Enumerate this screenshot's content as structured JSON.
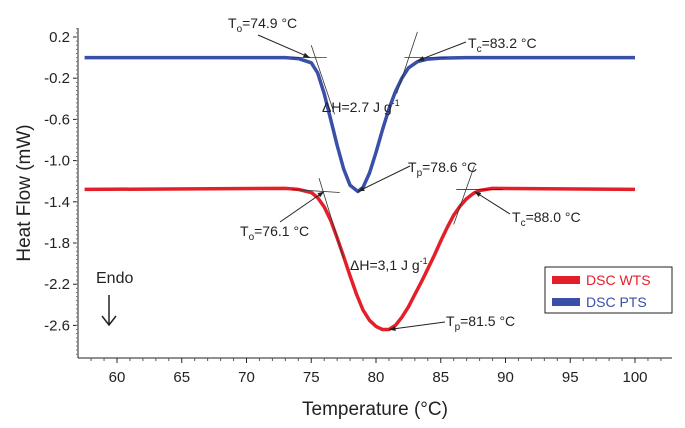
{
  "chart_data": {
    "type": "line",
    "title": "",
    "xlabel": "Temperature (°C)",
    "ylabel": "Heat Flow (mW)",
    "xlim": [
      57.2,
      103
    ],
    "ylim": [
      -2.92,
      0.29
    ],
    "xticks": [
      60,
      65,
      70,
      75,
      80,
      85,
      90,
      95,
      100
    ],
    "yticks": [
      0.2,
      -0.2,
      -0.6,
      -1.0,
      -1.4,
      -1.8,
      -2.2,
      -2.6
    ],
    "ytick_labels": [
      "0.2",
      "-0.2",
      "-0.6",
      "-1.0",
      "-1.4",
      "-1.8",
      "-2.2",
      "-2.6"
    ],
    "grid": false,
    "legend_position": "right",
    "series": [
      {
        "name": "DSC WTS",
        "color": "#e3202a",
        "x": [
          57.5,
          73,
          74,
          75,
          75.5,
          76,
          76.5,
          77,
          77.5,
          78,
          78.5,
          79,
          79.5,
          80,
          80.5,
          81,
          81.5,
          82,
          82.5,
          83,
          83.5,
          84,
          84.5,
          85,
          85.5,
          86,
          86.5,
          87,
          87.5,
          88,
          89,
          100
        ],
        "y": [
          -1.28,
          -1.27,
          -1.28,
          -1.31,
          -1.36,
          -1.45,
          -1.58,
          -1.75,
          -1.93,
          -2.12,
          -2.3,
          -2.45,
          -2.55,
          -2.61,
          -2.64,
          -2.64,
          -2.6,
          -2.52,
          -2.42,
          -2.3,
          -2.18,
          -2.05,
          -1.92,
          -1.78,
          -1.65,
          -1.53,
          -1.44,
          -1.37,
          -1.32,
          -1.29,
          -1.27,
          -1.28
        ]
      },
      {
        "name": "DSC PTS",
        "color": "#3a4fa8",
        "x": [
          57.5,
          73,
          74,
          75,
          75.5,
          76,
          76.5,
          77,
          77.5,
          78,
          78.6,
          79,
          79.5,
          80,
          80.5,
          81,
          81.5,
          82,
          82.5,
          83.2,
          84,
          85,
          87,
          100
        ],
        "y": [
          0.0,
          0.0,
          -0.01,
          -0.05,
          -0.15,
          -0.35,
          -0.6,
          -0.85,
          -1.08,
          -1.24,
          -1.3,
          -1.26,
          -1.12,
          -0.92,
          -0.7,
          -0.5,
          -0.33,
          -0.2,
          -0.1,
          -0.04,
          -0.015,
          -0.005,
          0.0,
          0.0
        ]
      }
    ],
    "annotations": [
      {
        "id": "pts_to",
        "label": "To=74.9 °C",
        "sym": "T",
        "sub": "o",
        "val": "=74.9 °C",
        "at": [
          74.9,
          0.0
        ]
      },
      {
        "id": "pts_tc",
        "label": "Tc=83.2 °C",
        "sym": "T",
        "sub": "c",
        "val": "=83.2 °C",
        "at": [
          83.2,
          -0.03
        ]
      },
      {
        "id": "pts_dh",
        "label": "ΔH=2.7 J g-1",
        "text": "ΔH=2.7 J g",
        "sup": "-1"
      },
      {
        "id": "pts_tp",
        "label": "Tp=78.6 °C",
        "sym": "T",
        "sub": "p",
        "val": "=78.6 °C",
        "at": [
          78.6,
          -1.3
        ]
      },
      {
        "id": "wts_to",
        "label": "To=76.1 °C",
        "sym": "T",
        "sub": "o",
        "val": "=76.1 °C",
        "at": [
          76.0,
          -1.3
        ]
      },
      {
        "id": "wts_tc",
        "label": "Tc=88.0 °C",
        "sym": "T",
        "sub": "c",
        "val": "=88.0 °C",
        "at": [
          87.6,
          -1.3
        ]
      },
      {
        "id": "wts_dh",
        "label": "ΔH=3,1 J g-1",
        "text": "ΔH=3,1 J g",
        "sup": "-1"
      },
      {
        "id": "wts_tp",
        "label": "Tp=81.5 °C",
        "sym": "T",
        "sub": "p",
        "val": "=81.5 °C",
        "at": [
          81.0,
          -2.64
        ]
      }
    ],
    "endo_label": "Endo"
  }
}
